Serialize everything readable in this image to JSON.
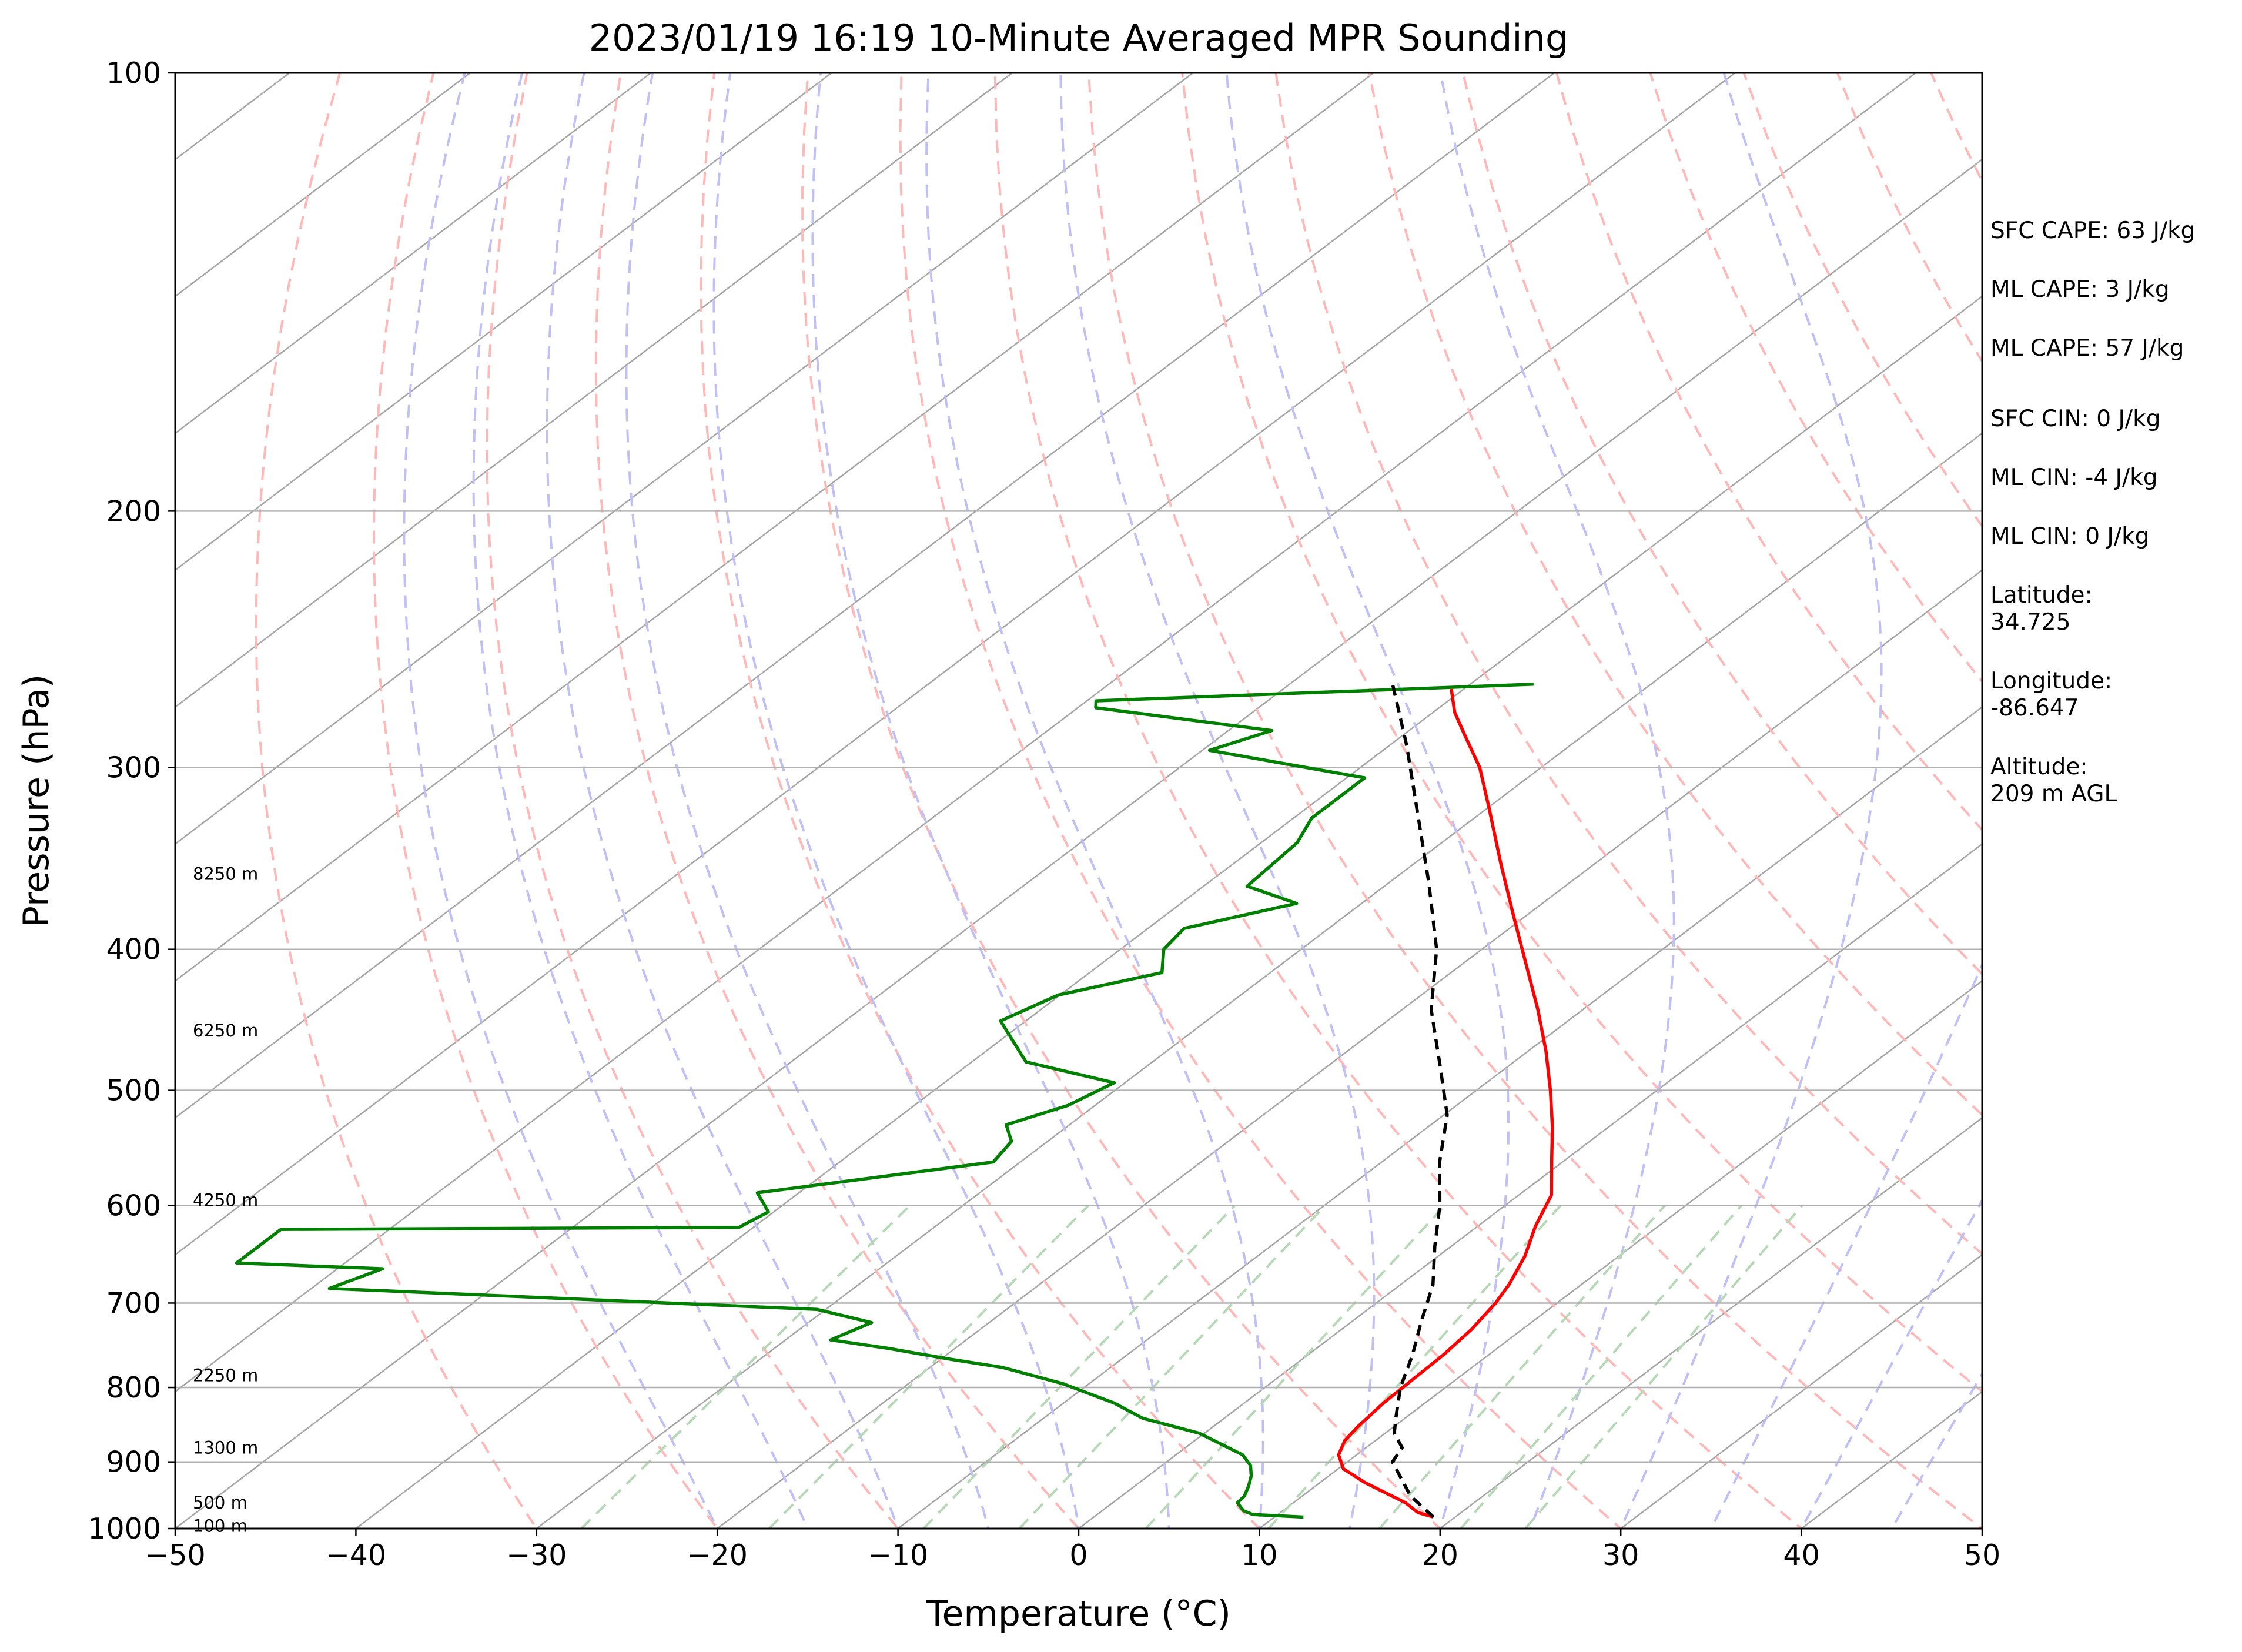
{
  "chart_data": {
    "type": "line",
    "title": "2023/01/19 16:19 10-Minute Averaged MPR Sounding",
    "xlabel": "Temperature (°C)",
    "ylabel": "Pressure (hPa)",
    "xlim": [
      -50,
      50
    ],
    "ylim": [
      1000,
      100
    ],
    "y_scale": "log",
    "skew": "skew-T",
    "grid": true,
    "x_ticks": [
      "−50",
      "−40",
      "−30",
      "−20",
      "−10",
      "0",
      "10",
      "20",
      "30",
      "40",
      "50"
    ],
    "x_tick_values": [
      -50,
      -40,
      -30,
      -20,
      -10,
      0,
      10,
      20,
      30,
      40,
      50
    ],
    "y_ticks": [
      "100",
      "200",
      "300",
      "400",
      "500",
      "600",
      "700",
      "800",
      "900",
      "1000"
    ],
    "y_tick_values": [
      100,
      200,
      300,
      400,
      500,
      600,
      700,
      800,
      900,
      1000
    ],
    "height_labels": [
      {
        "text": "8250 m",
        "p": 355
      },
      {
        "text": "6250 m",
        "p": 455
      },
      {
        "text": "4250 m",
        "p": 595
      },
      {
        "text": "2250 m",
        "p": 785
      },
      {
        "text": "1300 m",
        "p": 880
      },
      {
        "text": "500 m",
        "p": 960
      },
      {
        "text": "100 m",
        "p": 996
      }
    ],
    "series": [
      {
        "color": "#ff0000",
        "style": "solid",
        "points": [
          [
            982,
            18.8
          ],
          [
            975,
            17.6
          ],
          [
            960,
            16.2
          ],
          [
            930,
            12.5
          ],
          [
            910,
            10.3
          ],
          [
            890,
            9.0
          ],
          [
            870,
            8.3
          ],
          [
            850,
            8.0
          ],
          [
            820,
            7.7
          ],
          [
            790,
            7.6
          ],
          [
            760,
            7.5
          ],
          [
            730,
            7.2
          ],
          [
            700,
            6.6
          ],
          [
            680,
            6.0
          ],
          [
            650,
            4.8
          ],
          [
            620,
            3.2
          ],
          [
            590,
            1.8
          ],
          [
            560,
            -0.6
          ],
          [
            530,
            -3.1
          ],
          [
            500,
            -5.9
          ],
          [
            470,
            -9.0
          ],
          [
            440,
            -12.5
          ],
          [
            410,
            -16.4
          ],
          [
            380,
            -20.6
          ],
          [
            350,
            -25.1
          ],
          [
            320,
            -29.9
          ],
          [
            300,
            -33.4
          ],
          [
            285,
            -36.6
          ],
          [
            275,
            -38.8
          ],
          [
            265,
            -40.7
          ]
        ]
      },
      {
        "color": "#008000",
        "style": "solid",
        "points": [
          [
            982,
            11.6
          ],
          [
            978,
            8.6
          ],
          [
            972,
            7.8
          ],
          [
            960,
            6.9
          ],
          [
            950,
            6.8
          ],
          [
            935,
            6.3
          ],
          [
            920,
            5.7
          ],
          [
            905,
            4.9
          ],
          [
            890,
            3.7
          ],
          [
            860,
            -0.3
          ],
          [
            840,
            -4.5
          ],
          [
            820,
            -7.2
          ],
          [
            795,
            -11.5
          ],
          [
            775,
            -16.0
          ],
          [
            765,
            -19.5
          ],
          [
            752,
            -23.7
          ],
          [
            742,
            -27.5
          ],
          [
            722,
            -26.5
          ],
          [
            707,
            -30.5
          ],
          [
            684,
            -59.0
          ],
          [
            663,
            -57.5
          ],
          [
            657,
            -66.0
          ],
          [
            623,
            -66.0
          ],
          [
            621,
            -40.8
          ],
          [
            606,
            -40.3
          ],
          [
            588,
            -42.3
          ],
          [
            560,
            -31.5
          ],
          [
            542,
            -32.0
          ],
          [
            528,
            -33.5
          ],
          [
            512,
            -31.5
          ],
          [
            494,
            -30.6
          ],
          [
            478,
            -37.0
          ],
          [
            448,
            -41.4
          ],
          [
            430,
            -40.1
          ],
          [
            415,
            -36.0
          ],
          [
            400,
            -37.6
          ],
          [
            387,
            -38.0
          ],
          [
            372,
            -33.6
          ],
          [
            362,
            -37.6
          ],
          [
            338,
            -38.0
          ],
          [
            325,
            -39.0
          ],
          [
            305,
            -39.0
          ],
          [
            292,
            -49.6
          ],
          [
            283,
            -47.6
          ],
          [
            273,
            -59.0
          ],
          [
            270,
            -59.5
          ],
          [
            263,
            -36.5
          ]
        ]
      },
      {
        "color": "#000000",
        "style": "dashed",
        "points": [
          [
            982,
            18.8
          ],
          [
            950,
            16.0
          ],
          [
            900,
            12.5
          ],
          [
            880,
            12.0
          ],
          [
            860,
            10.5
          ],
          [
            840,
            9.5
          ],
          [
            800,
            7.5
          ],
          [
            760,
            5.8
          ],
          [
            720,
            3.8
          ],
          [
            680,
            1.8
          ],
          [
            640,
            -0.9
          ],
          [
            600,
            -3.6
          ],
          [
            560,
            -6.8
          ],
          [
            520,
            -9.8
          ],
          [
            480,
            -13.9
          ],
          [
            440,
            -18.4
          ],
          [
            400,
            -22.5
          ],
          [
            360,
            -27.8
          ],
          [
            320,
            -33.9
          ],
          [
            290,
            -39.0
          ],
          [
            263,
            -44.3
          ]
        ]
      }
    ],
    "background_lines": [
      {
        "kind": "dry adiabats",
        "color": "#ffb3b3",
        "style": "dashed"
      },
      {
        "kind": "moist adiabats",
        "color": "#b3b3f5",
        "style": "dashed"
      },
      {
        "kind": "mixing ratio lines",
        "color": "#b3d9b3",
        "style": "dashed"
      },
      {
        "kind": "isotherms",
        "color": "#999999",
        "style": "solid"
      }
    ]
  },
  "info_panel": {
    "sfc_cape": "SFC CAPE: 63 J/kg",
    "ml_cape_1": "ML CAPE: 3 J/kg",
    "ml_cape_2": "ML CAPE: 57 J/kg",
    "sfc_cin": "SFC CIN: 0 J/kg",
    "ml_cin_1": "ML CIN: -4 J/kg",
    "ml_cin_2": "ML CIN: 0 J/kg",
    "latitude_label": "Latitude:",
    "latitude_value": "34.725",
    "longitude_label": "Longitude:",
    "longitude_value": "-86.647",
    "altitude_label": "Altitude:",
    "altitude_value": "209 m AGL"
  }
}
